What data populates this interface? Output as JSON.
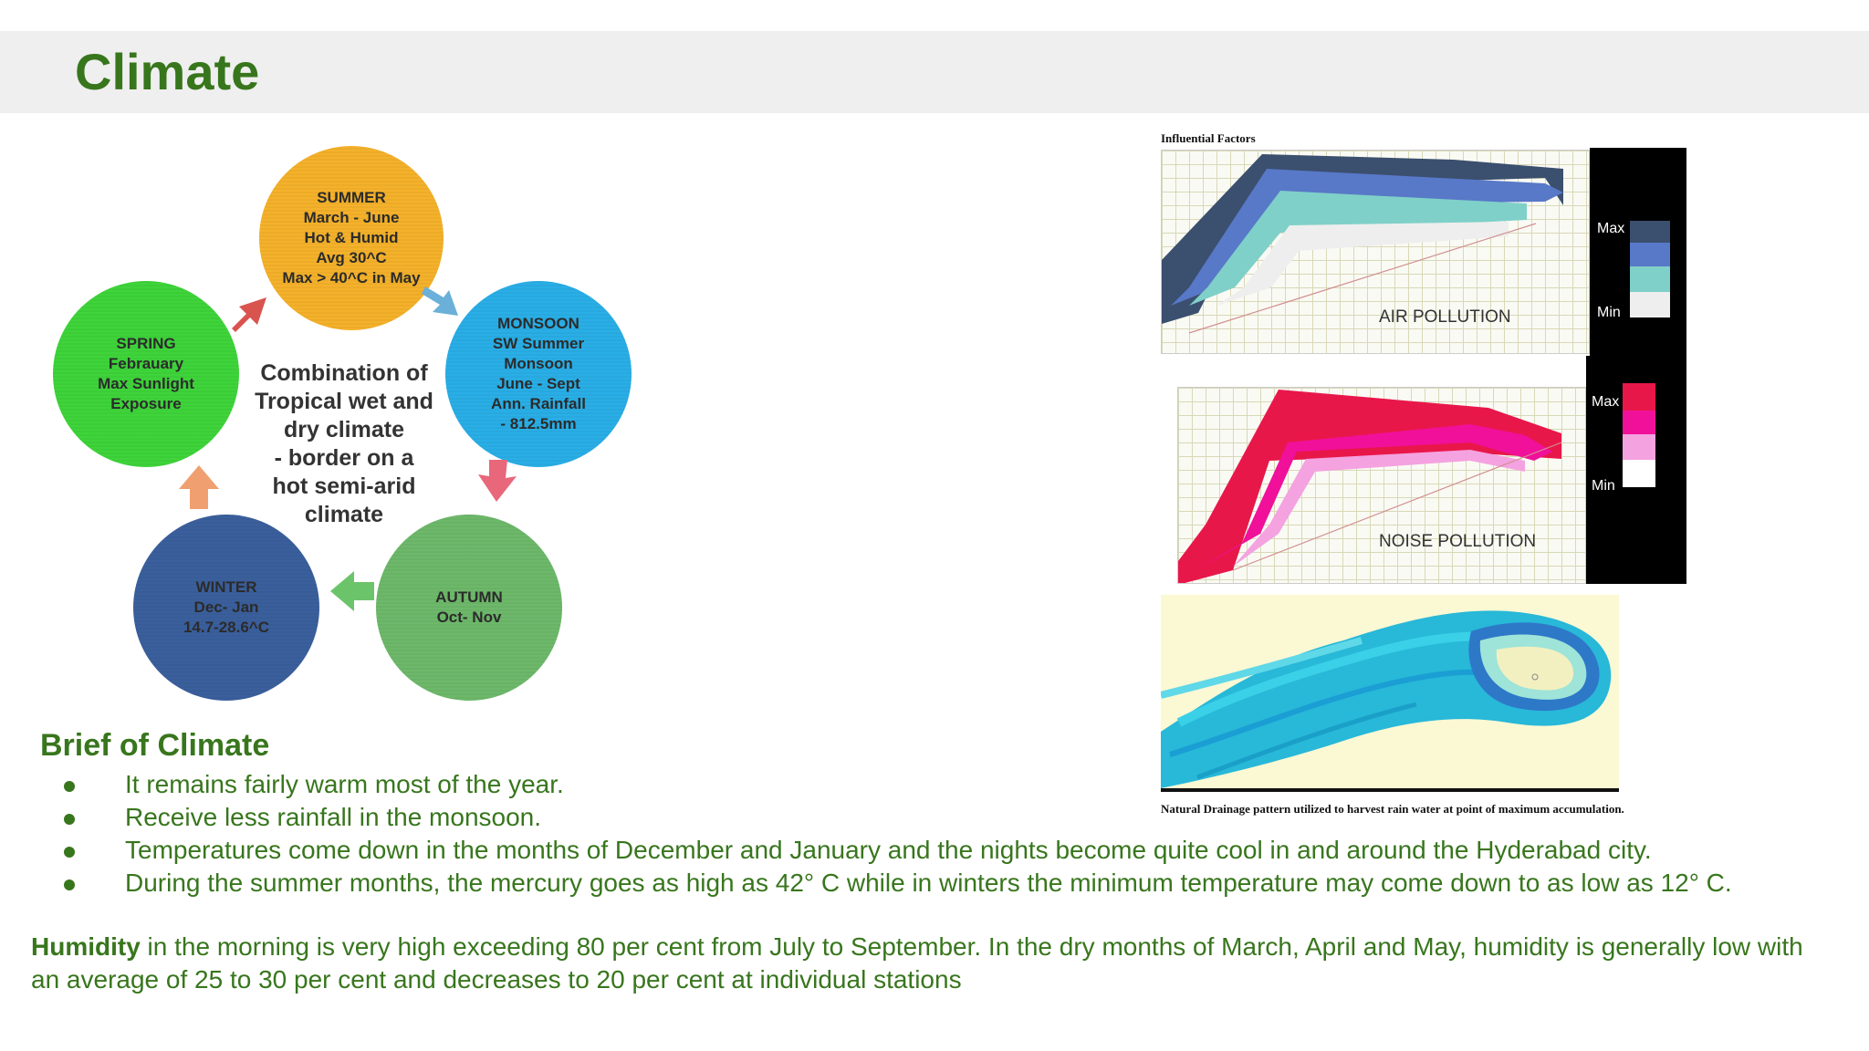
{
  "slide": {
    "title": "Climate"
  },
  "cycle": {
    "center": "Combination of\nTropical wet and\ndry climate\n- border on a\nhot semi-arid\nclimate",
    "seasons": {
      "summer": "SUMMER\nMarch - June\nHot & Humid\nAvg 30^C\nMax > 40^C in May",
      "monsoon": "MONSOON\nSW Summer\nMonsoon\nJune - Sept\nAnn. Rainfall\n- 812.5mm",
      "autumn": "AUTUMN\nOct- Nov",
      "winter": "WINTER\nDec- Jan\n14.7-28.6^C",
      "spring": "SPRING\nFebrauary\nMax Sunlight\nExposure"
    },
    "colors": {
      "summer": "#f4b12a",
      "monsoon": "#29aee6",
      "autumn": "#6db86a",
      "winter": "#3a5f9c",
      "spring": "#3ed43a"
    }
  },
  "brief": {
    "heading": "Brief of Climate",
    "bullets": [
      "It remains fairly warm most of the year.",
      "Receive less rainfall in the monsoon.",
      "Temperatures come down in the months of December and January and the nights become quite cool in and around the Hyderabad city.",
      "During the summer months, the mercury goes as high as 42° C while in winters the minimum temperature may come down to as low as 12° C."
    ],
    "humidity_label": "Humidity",
    "humidity_text": " in the morning is very high exceeding 80 per cent from July to September. In the dry months of March, April and May, humidity is generally low with an average of 25 to 30 per cent and decreases to 20 per cent at individual stations"
  },
  "factors": {
    "title": "Influential Factors",
    "air_label": "AIR POLLUTION",
    "noise_label": "NOISE POLLUTION",
    "legend_max": "Max",
    "legend_min": "Min",
    "caption": "Natural Drainage pattern utilized to harvest rain water at point of maximum accumulation.",
    "air_colors": [
      "#3b4f6e",
      "#5878c8",
      "#7fd0c8",
      "#eeeeee"
    ],
    "noise_colors": [
      "#e8174a",
      "#f0109a",
      "#f4a2e0",
      "#ffffff"
    ]
  }
}
